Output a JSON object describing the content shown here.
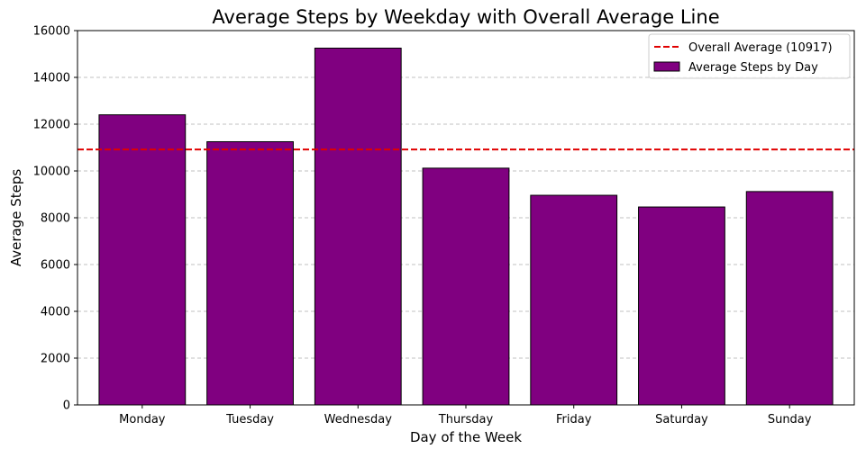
{
  "chart_data": {
    "type": "bar",
    "title": "Average Steps by Weekday with Overall Average Line",
    "xlabel": "Day of the Week",
    "ylabel": "Average Steps",
    "categories": [
      "Monday",
      "Tuesday",
      "Wednesday",
      "Thursday",
      "Friday",
      "Saturday",
      "Sunday"
    ],
    "series": [
      {
        "name": "Average Steps by Day",
        "values": [
          12400,
          11250,
          15250,
          10120,
          8960,
          8460,
          9120
        ],
        "color": "#800080",
        "edge_color": "#000000"
      }
    ],
    "reference_line": {
      "name": "Overall Average (10917)",
      "value": 10917,
      "color": "#e00000",
      "style": "dashed"
    },
    "ylim": [
      0,
      16000
    ],
    "yticks": [
      0,
      2000,
      4000,
      6000,
      8000,
      10000,
      12000,
      14000,
      16000
    ],
    "grid": {
      "axis": "y",
      "style": "dashed",
      "color": "#c0c0c0"
    },
    "legend": {
      "position": "top-right"
    }
  }
}
